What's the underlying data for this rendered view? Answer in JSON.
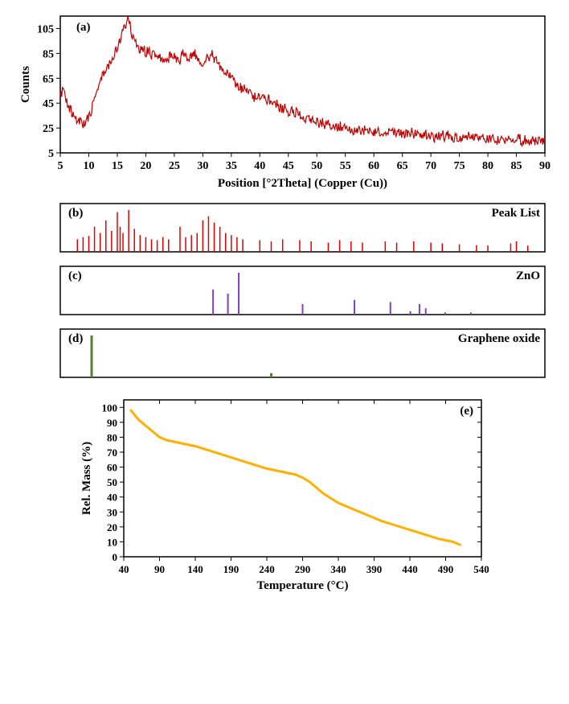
{
  "panel_a": {
    "type": "line",
    "label": "(a)",
    "xlabel": "Position [°2Theta] (Copper (Cu))",
    "ylabel": "Counts",
    "xlim": [
      5,
      90
    ],
    "ylim": [
      5,
      115
    ],
    "xticks": [
      5,
      10,
      15,
      20,
      25,
      30,
      35,
      40,
      45,
      50,
      55,
      60,
      65,
      70,
      75,
      80,
      85,
      90
    ],
    "yticks": [
      5,
      25,
      45,
      65,
      85,
      105
    ],
    "line_color": "#c00000",
    "line_width": 1.2,
    "background_color": "#ffffff",
    "label_fontsize": 15,
    "tick_fontsize": 14,
    "data": [
      [
        5,
        50
      ],
      [
        5.5,
        55
      ],
      [
        6,
        48
      ],
      [
        6.5,
        42
      ],
      [
        7,
        38
      ],
      [
        7.5,
        34
      ],
      [
        8,
        30
      ],
      [
        8.5,
        32
      ],
      [
        9,
        28
      ],
      [
        9.5,
        30
      ],
      [
        10,
        34
      ],
      [
        10.5,
        40
      ],
      [
        11,
        50
      ],
      [
        11.5,
        58
      ],
      [
        12,
        62
      ],
      [
        12.5,
        68
      ],
      [
        13,
        72
      ],
      [
        13.5,
        75
      ],
      [
        14,
        80
      ],
      [
        14.5,
        85
      ],
      [
        15,
        90
      ],
      [
        15.5,
        95
      ],
      [
        16,
        102
      ],
      [
        16.5,
        108
      ],
      [
        17,
        115
      ],
      [
        17.5,
        100
      ],
      [
        18,
        95
      ],
      [
        18.5,
        92
      ],
      [
        19,
        88
      ],
      [
        19.5,
        90
      ],
      [
        20,
        85
      ],
      [
        20.5,
        88
      ],
      [
        21,
        82
      ],
      [
        21.5,
        85
      ],
      [
        22,
        80
      ],
      [
        22.5,
        83
      ],
      [
        23,
        78
      ],
      [
        23.5,
        80
      ],
      [
        24,
        82
      ],
      [
        24.5,
        85
      ],
      [
        25,
        82
      ],
      [
        25.5,
        78
      ],
      [
        26,
        80
      ],
      [
        26.5,
        85
      ],
      [
        27,
        82
      ],
      [
        27.5,
        80
      ],
      [
        28,
        83
      ],
      [
        28.5,
        85
      ],
      [
        29,
        82
      ],
      [
        29.5,
        80
      ],
      [
        30,
        78
      ],
      [
        30.5,
        82
      ],
      [
        31,
        80
      ],
      [
        31.5,
        85
      ],
      [
        32,
        80
      ],
      [
        32.5,
        78
      ],
      [
        33,
        75
      ],
      [
        33.5,
        72
      ],
      [
        34,
        70
      ],
      [
        34.5,
        68
      ],
      [
        35,
        65
      ],
      [
        35.5,
        62
      ],
      [
        36,
        60
      ],
      [
        36.5,
        58
      ],
      [
        37,
        55
      ],
      [
        37.5,
        58
      ],
      [
        38,
        56
      ],
      [
        38.5,
        53
      ],
      [
        39,
        50
      ],
      [
        39.5,
        52
      ],
      [
        40,
        48
      ],
      [
        40.5,
        50
      ],
      [
        41,
        46
      ],
      [
        41.5,
        48
      ],
      [
        42,
        45
      ],
      [
        42.5,
        47
      ],
      [
        43,
        44
      ],
      [
        43.5,
        42
      ],
      [
        44,
        40
      ],
      [
        44.5,
        42
      ],
      [
        45,
        38
      ],
      [
        45.5,
        40
      ],
      [
        46,
        36
      ],
      [
        46.5,
        38
      ],
      [
        47,
        35
      ],
      [
        47.5,
        36
      ],
      [
        48,
        33
      ],
      [
        48.5,
        34
      ],
      [
        49,
        32
      ],
      [
        49.5,
        33
      ],
      [
        50,
        30
      ],
      [
        50.5,
        28
      ],
      [
        51,
        30
      ],
      [
        51.5,
        27
      ],
      [
        52,
        29
      ],
      [
        52.5,
        26
      ],
      [
        53,
        28
      ],
      [
        53.5,
        25
      ],
      [
        54,
        27
      ],
      [
        54.5,
        25
      ],
      [
        55,
        26
      ],
      [
        55.5,
        23
      ],
      [
        56,
        25
      ],
      [
        56.5,
        22
      ],
      [
        57,
        24
      ],
      [
        57.5,
        23
      ],
      [
        58,
        22
      ],
      [
        58.5,
        24
      ],
      [
        59,
        21
      ],
      [
        59.5,
        23
      ],
      [
        60,
        22
      ],
      [
        60.5,
        24
      ],
      [
        61,
        21
      ],
      [
        61.5,
        23
      ],
      [
        62,
        20
      ],
      [
        62.5,
        22
      ],
      [
        63,
        21
      ],
      [
        63.5,
        23
      ],
      [
        64,
        20
      ],
      [
        64.5,
        22
      ],
      [
        65,
        19
      ],
      [
        65.5,
        21
      ],
      [
        66,
        20
      ],
      [
        66.5,
        22
      ],
      [
        67,
        19
      ],
      [
        67.5,
        21
      ],
      [
        68,
        20
      ],
      [
        68.5,
        19
      ],
      [
        69,
        21
      ],
      [
        69.5,
        18
      ],
      [
        70,
        20
      ],
      [
        70.5,
        17
      ],
      [
        71,
        19
      ],
      [
        71.5,
        18
      ],
      [
        72,
        20
      ],
      [
        72.5,
        17
      ],
      [
        73,
        19
      ],
      [
        73.5,
        18
      ],
      [
        74,
        17
      ],
      [
        74.5,
        19
      ],
      [
        75,
        16
      ],
      [
        75.5,
        18
      ],
      [
        76,
        17
      ],
      [
        76.5,
        19
      ],
      [
        77,
        16
      ],
      [
        77.5,
        18
      ],
      [
        78,
        17
      ],
      [
        78.5,
        16
      ],
      [
        79,
        18
      ],
      [
        79.5,
        15
      ],
      [
        80,
        17
      ],
      [
        80.5,
        16
      ],
      [
        81,
        18
      ],
      [
        81.5,
        15
      ],
      [
        82,
        17
      ],
      [
        82.5,
        16
      ],
      [
        83,
        15
      ],
      [
        83.5,
        17
      ],
      [
        84,
        14
      ],
      [
        84.5,
        16
      ],
      [
        85,
        15
      ],
      [
        85.5,
        17
      ],
      [
        86,
        14
      ],
      [
        86.5,
        16
      ],
      [
        87,
        15
      ],
      [
        87.5,
        14
      ],
      [
        88,
        16
      ],
      [
        88.5,
        13
      ],
      [
        89,
        15
      ],
      [
        89.5,
        14
      ],
      [
        90,
        13
      ]
    ],
    "noise_amplitude": 8
  },
  "panel_b": {
    "type": "bar",
    "label": "(b)",
    "title": "Peak List",
    "line_color": "#e00000",
    "line_width": 1.5,
    "background_color": "#ffffff",
    "xlim": [
      5,
      90
    ],
    "peaks": [
      [
        8,
        30
      ],
      [
        9,
        35
      ],
      [
        10,
        38
      ],
      [
        11,
        60
      ],
      [
        12,
        45
      ],
      [
        13,
        75
      ],
      [
        14,
        50
      ],
      [
        15,
        95
      ],
      [
        15.5,
        60
      ],
      [
        16,
        45
      ],
      [
        17,
        100
      ],
      [
        18,
        55
      ],
      [
        19,
        40
      ],
      [
        20,
        35
      ],
      [
        21,
        30
      ],
      [
        22,
        28
      ],
      [
        23,
        35
      ],
      [
        24,
        30
      ],
      [
        26,
        60
      ],
      [
        27,
        35
      ],
      [
        28,
        40
      ],
      [
        29,
        45
      ],
      [
        30,
        75
      ],
      [
        31,
        85
      ],
      [
        32,
        70
      ],
      [
        33,
        60
      ],
      [
        34,
        45
      ],
      [
        35,
        40
      ],
      [
        36,
        35
      ],
      [
        37,
        30
      ],
      [
        40,
        28
      ],
      [
        42,
        25
      ],
      [
        44,
        30
      ],
      [
        47,
        28
      ],
      [
        49,
        25
      ],
      [
        52,
        22
      ],
      [
        54,
        28
      ],
      [
        56,
        25
      ],
      [
        58,
        22
      ],
      [
        62,
        25
      ],
      [
        64,
        22
      ],
      [
        67,
        25
      ],
      [
        70,
        22
      ],
      [
        72,
        20
      ],
      [
        75,
        18
      ],
      [
        78,
        16
      ],
      [
        80,
        15
      ],
      [
        84,
        20
      ],
      [
        85,
        25
      ],
      [
        87,
        15
      ]
    ]
  },
  "panel_c": {
    "type": "bar",
    "label": "(c)",
    "title": "ZnO",
    "line_color": "#8040c0",
    "line_width": 2,
    "background_color": "#ffffff",
    "xlim": [
      5,
      90
    ],
    "peaks": [
      [
        31.8,
        60
      ],
      [
        34.4,
        50
      ],
      [
        36.3,
        100
      ],
      [
        47.5,
        25
      ],
      [
        56.6,
        35
      ],
      [
        62.9,
        30
      ],
      [
        66.4,
        8
      ],
      [
        68.0,
        25
      ],
      [
        69.1,
        15
      ],
      [
        72.5,
        5
      ],
      [
        77.0,
        5
      ]
    ]
  },
  "panel_d": {
    "type": "bar",
    "label": "(d)",
    "title": "Graphene oxide",
    "line_color": "#548235",
    "line_width": 3,
    "background_color": "#ffffff",
    "xlim": [
      5,
      90
    ],
    "peaks": [
      [
        10.5,
        100
      ],
      [
        42,
        10
      ]
    ]
  },
  "panel_e": {
    "type": "line",
    "label": "(e)",
    "xlabel": "Temperature (°C)",
    "ylabel": "Rel. Mass (%)",
    "xlim": [
      40,
      540
    ],
    "ylim": [
      0,
      105
    ],
    "xticks": [
      40,
      90,
      140,
      190,
      240,
      290,
      340,
      390,
      440,
      490,
      540
    ],
    "yticks": [
      0,
      10,
      20,
      30,
      40,
      50,
      60,
      70,
      80,
      90,
      100
    ],
    "line_color": "#ffb000",
    "line_width": 3,
    "background_color": "#ffffff",
    "label_fontsize": 15,
    "tick_fontsize": 13,
    "data": [
      [
        50,
        98
      ],
      [
        55,
        95
      ],
      [
        60,
        92
      ],
      [
        70,
        88
      ],
      [
        80,
        84
      ],
      [
        90,
        80
      ],
      [
        100,
        78
      ],
      [
        110,
        77
      ],
      [
        120,
        76
      ],
      [
        140,
        74
      ],
      [
        160,
        71
      ],
      [
        180,
        68
      ],
      [
        200,
        65
      ],
      [
        220,
        62
      ],
      [
        240,
        59
      ],
      [
        260,
        57
      ],
      [
        280,
        55
      ],
      [
        290,
        53
      ],
      [
        300,
        50
      ],
      [
        310,
        46
      ],
      [
        320,
        42
      ],
      [
        330,
        39
      ],
      [
        340,
        36
      ],
      [
        360,
        32
      ],
      [
        380,
        28
      ],
      [
        400,
        24
      ],
      [
        420,
        21
      ],
      [
        440,
        18
      ],
      [
        460,
        15
      ],
      [
        480,
        12
      ],
      [
        500,
        10
      ],
      [
        510,
        8
      ]
    ]
  }
}
